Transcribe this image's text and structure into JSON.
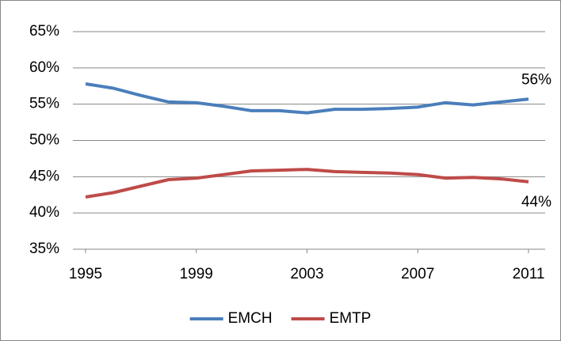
{
  "chart_data": {
    "type": "line",
    "x": [
      1995,
      1996,
      1997,
      1998,
      1999,
      2000,
      2001,
      2002,
      2003,
      2004,
      2005,
      2006,
      2007,
      2008,
      2009,
      2010,
      2011
    ],
    "series": [
      {
        "name": "EMCH",
        "color": "#4a7ebb",
        "values": [
          57.8,
          57.2,
          56.2,
          55.3,
          55.2,
          54.7,
          54.1,
          54.1,
          53.8,
          54.3,
          54.3,
          54.4,
          54.6,
          55.2,
          54.9,
          55.3,
          55.7
        ],
        "value_labels": [
          null,
          null,
          null,
          null,
          null,
          null,
          null,
          null,
          null,
          null,
          null,
          null,
          null,
          null,
          null,
          null,
          "56%"
        ]
      },
      {
        "name": "EMTP",
        "color": "#be4b48",
        "values": [
          42.2,
          42.8,
          43.7,
          44.6,
          44.8,
          45.3,
          45.8,
          45.9,
          46.0,
          45.7,
          45.6,
          45.5,
          45.3,
          44.8,
          44.9,
          44.7,
          44.3
        ],
        "value_labels": [
          null,
          null,
          null,
          null,
          null,
          null,
          null,
          null,
          null,
          null,
          null,
          null,
          null,
          null,
          null,
          null,
          "44%"
        ]
      }
    ],
    "xlim": [
      1995,
      2011
    ],
    "xticks": [
      1995,
      1999,
      2003,
      2007,
      2011
    ],
    "ylim": [
      35,
      65
    ],
    "yticks": [
      {
        "value": 35,
        "label": "35%"
      },
      {
        "value": 40,
        "label": "40%"
      },
      {
        "value": 45,
        "label": "45%"
      },
      {
        "value": 50,
        "label": "50%"
      },
      {
        "value": 55,
        "label": "55%"
      },
      {
        "value": 60,
        "label": "60%"
      },
      {
        "value": 65,
        "label": "65%"
      }
    ],
    "grid": true,
    "legend": "bottom"
  }
}
